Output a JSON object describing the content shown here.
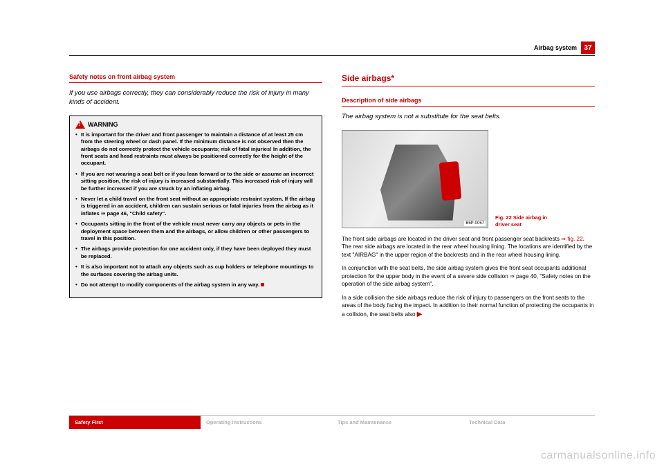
{
  "header": {
    "section": "Airbag system",
    "page": "37"
  },
  "left": {
    "h3": "Safety notes on front airbag system",
    "lede": "If you use airbags correctly, they can considerably reduce the risk of injury in many kinds of accident.",
    "warn_label": "WARNING",
    "bullets": [
      "It is important for the driver and front passenger to maintain a distance of at least 25 cm from the steering wheel or dash panel. If the minimum distance is not observed then the airbags do not correctly protect the vehicle occupants; risk of fatal injuries! In addition, the front seats and head restraints must always be positioned correctly for the height of the occupant.",
      "If you are not wearing a seat belt or if you lean forward or to the side or assume an incorrect sitting position, the risk of injury is increased substantially. This increased risk of injury will be further increased if you are struck by an inflating airbag.",
      "Never let a child travel on the front seat without an appropriate restraint system. If the airbag is triggered in an accident, children can sustain serious or fatal injuries from the airbag as it inflates ⇒ page 46, \"Child safety\".",
      "Occupants sitting in the front of the vehicle must never carry any objects or pets in the deployment space between them and the airbags, or allow children or other passengers to travel in this position.",
      "The airbags provide protection for one accident only, if they have been deployed they must be replaced.",
      "It is also important not to attach any objects such as cup holders or telephone mountings to the surfaces covering the airbag units.",
      "Do not attempt to modify components of the airbag system in any way."
    ]
  },
  "right": {
    "h2": "Side airbags*",
    "h3": "Description of side airbags",
    "lede": "The airbag system is not a substitute for the seat belts.",
    "img_label": "B5P-0057",
    "caption": "Fig. 22   Side airbag in driver seat",
    "p1a": "The front side airbags are located in the driver seat and front passenger seat backrests ",
    "p1ref": "⇒ fig. 22",
    "p1b": ". The rear side airbags are located in the rear wheel housing lining. The locations are identified by the text \"AIRBAG\" in the upper region of the backrests and in the rear wheel housing lining.",
    "p2": "In conjunction with the seat belts, the side airbag system gives the front seat occupants additional protection for the upper body in the event of a severe side collision ⇒ page 40, \"Safety notes on the operation of the side airbag system\".",
    "p3": "In a side collision the side airbags reduce the risk of injury to passengers on the front seats to the areas of the body facing the impact. In addition to their normal function of protecting the occupants in a collision, the seat belts also"
  },
  "footer": {
    "t1": "Safety First",
    "t2": "Operating instructions",
    "t3": "Tips and Maintenance",
    "t4": "Technical Data"
  },
  "watermark": "carmanualsonline.info"
}
